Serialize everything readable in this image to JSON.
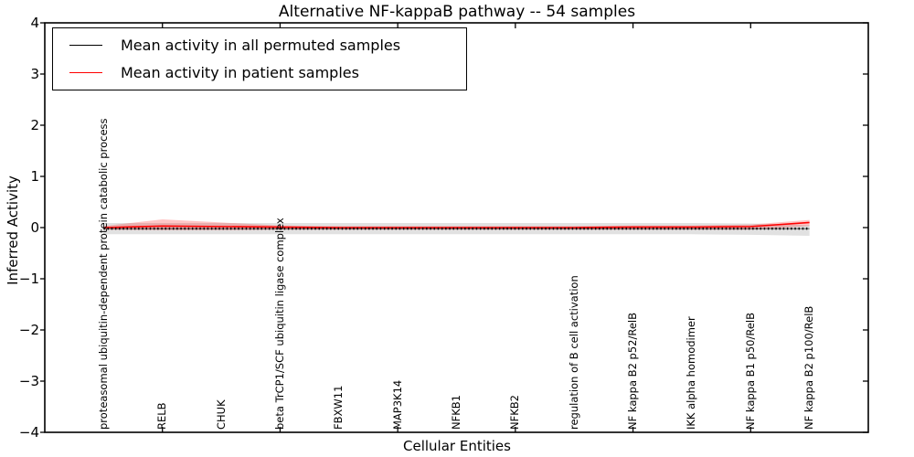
{
  "chart_data": {
    "type": "line",
    "title": "Alternative NF-kappaB pathway -- 54 samples",
    "xlabel": "Cellular Entities",
    "ylabel": "Inferred Activity",
    "ylim": [
      -4,
      4
    ],
    "yticks": [
      4,
      3,
      2,
      1,
      0,
      -1,
      -2,
      -3,
      -4
    ],
    "grid": false,
    "legend_position": "upper left",
    "categories": [
      "proteasomal ubiquitin-dependent protein catabolic process",
      "RELB",
      "CHUK",
      "beta TrCP1/SCF ubiquitin ligase complex",
      "FBXW11",
      "MAP3K14",
      "NFKB1",
      "NFKB2",
      "regulation of B cell activation",
      "NF kappa B2 p52/RelB",
      "IKK alpha homodimer",
      "NF kappa B1 p50/RelB",
      "NF kappa B2 p100/RelB"
    ],
    "series": [
      {
        "name": "Mean activity in all permuted samples",
        "color": "#000000",
        "style": "dotted-markers",
        "values": [
          -0.02,
          -0.02,
          -0.02,
          -0.02,
          -0.02,
          -0.02,
          -0.02,
          -0.02,
          -0.02,
          -0.02,
          -0.02,
          -0.02,
          -0.02
        ],
        "band": {
          "color": "rgba(120,120,120,0.22)",
          "upper": [
            0.09,
            0.09,
            0.09,
            0.09,
            0.09,
            0.09,
            0.09,
            0.09,
            0.09,
            0.09,
            0.09,
            0.08,
            0.05
          ],
          "lower": [
            -0.13,
            -0.13,
            -0.13,
            -0.13,
            -0.13,
            -0.13,
            -0.13,
            -0.13,
            -0.13,
            -0.13,
            -0.13,
            -0.14,
            -0.16
          ]
        }
      },
      {
        "name": "Mean activity in patient samples",
        "color": "#ff0000",
        "style": "solid",
        "values": [
          0.0,
          0.03,
          0.02,
          0.01,
          0.0,
          0.0,
          0.0,
          0.0,
          0.0,
          0.01,
          0.01,
          0.02,
          0.1
        ],
        "band": {
          "color": "rgba(255,0,0,0.22)",
          "upper": [
            0.03,
            0.16,
            0.1,
            0.04,
            0.03,
            0.03,
            0.03,
            0.03,
            0.03,
            0.04,
            0.04,
            0.06,
            0.15
          ],
          "lower": [
            -0.04,
            -0.05,
            -0.05,
            -0.04,
            -0.04,
            -0.04,
            -0.04,
            -0.04,
            -0.04,
            -0.04,
            -0.04,
            -0.04,
            0.03
          ]
        }
      }
    ]
  }
}
